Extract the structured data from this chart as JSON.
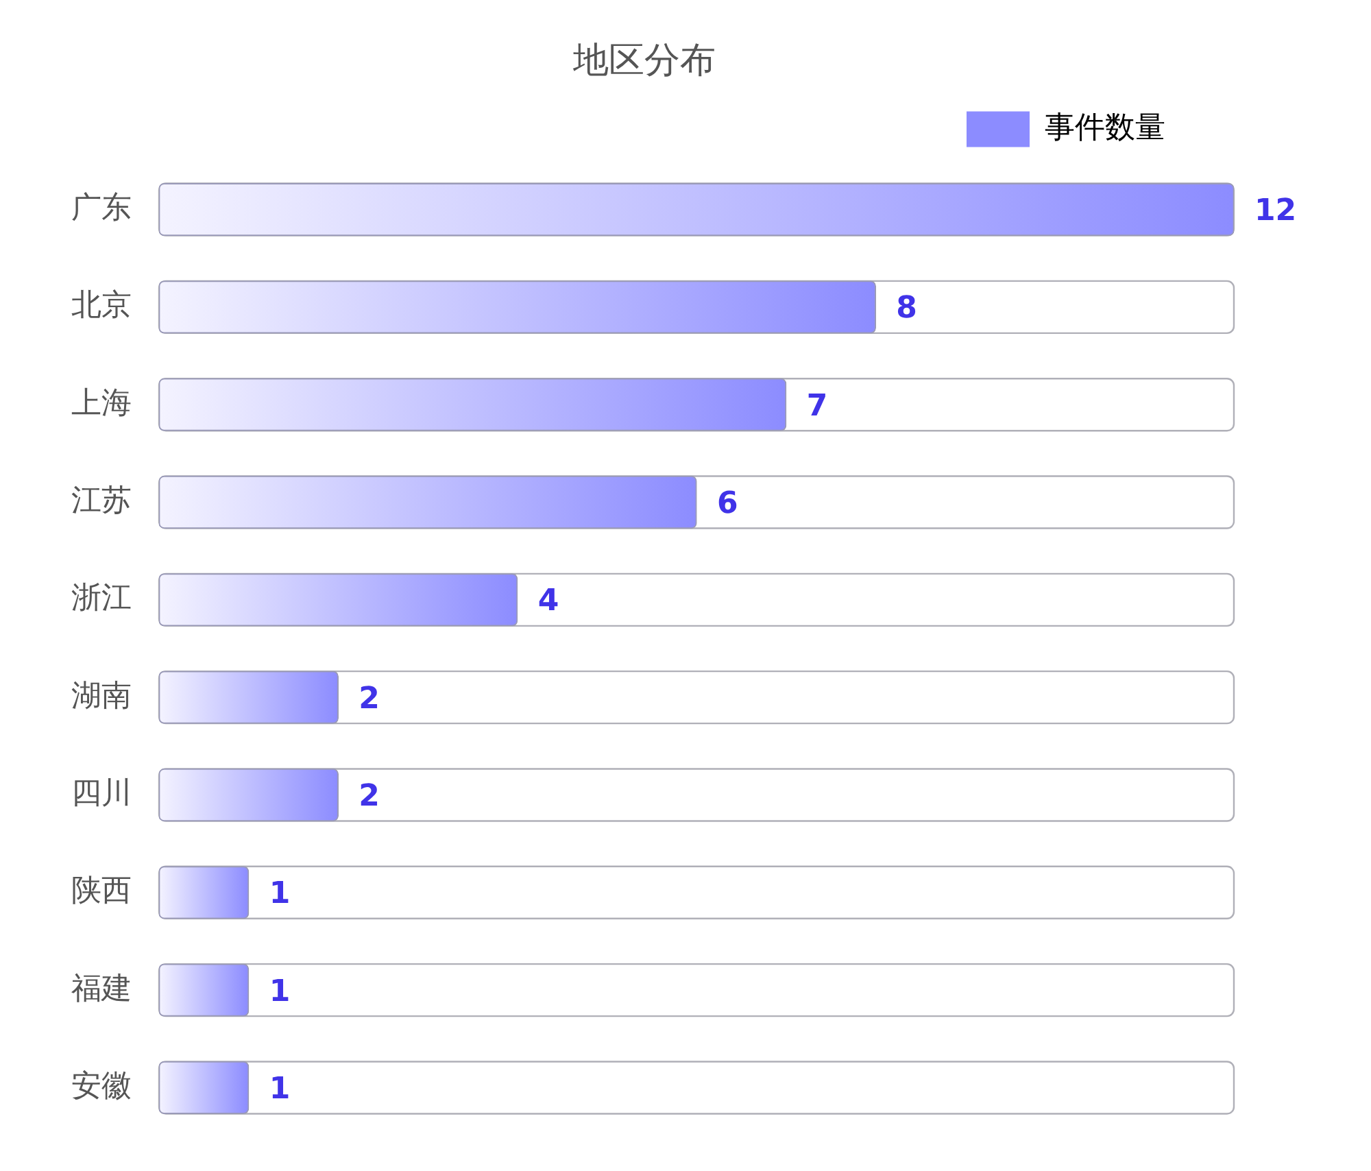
{
  "chart_data": {
    "type": "bar",
    "orientation": "horizontal",
    "title": "地区分布",
    "categories": [
      "广东",
      "北京",
      "上海",
      "江苏",
      "浙江",
      "湖南",
      "四川",
      "陕西",
      "福建",
      "安徽"
    ],
    "series": [
      {
        "name": "事件数量",
        "color": "#8c8cff",
        "values": [
          12,
          8,
          7,
          6,
          4,
          2,
          2,
          1,
          1,
          1
        ]
      }
    ],
    "xlim": [
      0,
      12
    ],
    "tick_labels": "y",
    "legend": "top right",
    "data_labels": true
  }
}
